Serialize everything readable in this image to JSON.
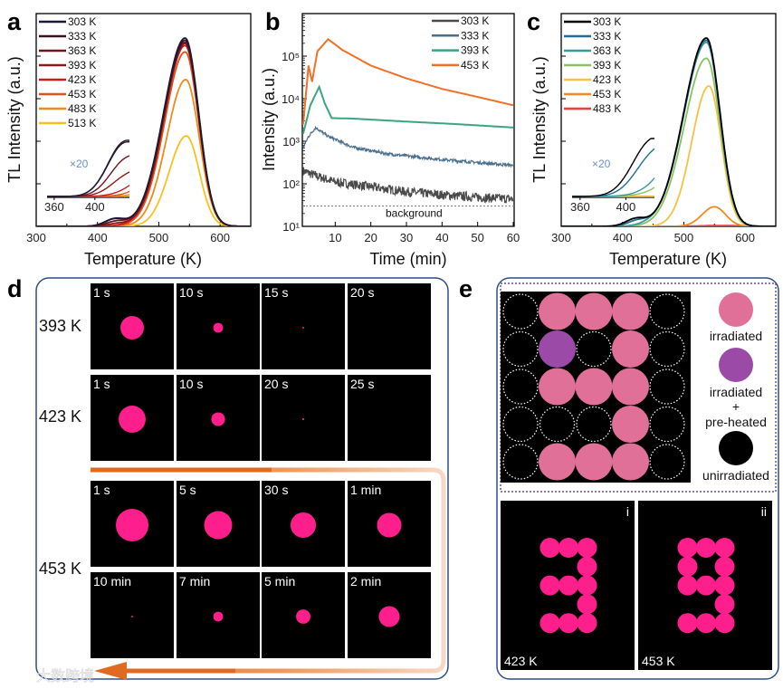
{
  "panel_letters": {
    "a": "a",
    "b": "b",
    "c": "c",
    "d": "d",
    "e": "e"
  },
  "watermark": "大数跨境",
  "chart_data": [
    {
      "id": "a",
      "type": "line",
      "xlabel": "Temperature (K)",
      "ylabel": "TL  Intensity (a.u.)",
      "xlim": [
        300,
        650
      ],
      "ylim": [
        0,
        1
      ],
      "xticks": [
        "300",
        "400",
        "500",
        "600"
      ],
      "grid": false,
      "legend_position": "top-left",
      "inset": {
        "label": "×20",
        "xlim": [
          353,
          434
        ],
        "xticks": [
          "360",
          "400"
        ],
        "magnification": 20
      },
      "series": [
        {
          "name": "303 K",
          "color": "#1b1a33",
          "peak_T": 543,
          "peak_I": 0.885,
          "width_low": 35,
          "width_high": 22,
          "low_peak_T": 428,
          "low_peak_I": 0.034
        },
        {
          "name": "333 K",
          "color": "#3a1020",
          "peak_T": 543,
          "peak_I": 0.875,
          "width_low": 35,
          "width_high": 22,
          "low_peak_T": 428,
          "low_peak_I": 0.033
        },
        {
          "name": "363 K",
          "color": "#6b1420",
          "peak_T": 543,
          "peak_I": 0.865,
          "width_low": 35,
          "width_high": 22,
          "low_peak_T": 430,
          "low_peak_I": 0.022
        },
        {
          "name": "393 K",
          "color": "#8c1a1a",
          "peak_T": 543,
          "peak_I": 0.86,
          "width_low": 34,
          "width_high": 22,
          "low_peak_T": 432,
          "low_peak_I": 0.012
        },
        {
          "name": "423 K",
          "color": "#c41e1e",
          "peak_T": 543,
          "peak_I": 0.85,
          "width_low": 34,
          "width_high": 22,
          "low_peak_T": 440,
          "low_peak_I": 0.003
        },
        {
          "name": "453 K",
          "color": "#e0521c",
          "peak_T": 543,
          "peak_I": 0.82,
          "width_low": 33,
          "width_high": 22,
          "low_peak_T": 440,
          "low_peak_I": 0.0
        },
        {
          "name": "483 K",
          "color": "#ee8a1e",
          "peak_T": 544,
          "peak_I": 0.69,
          "width_low": 31,
          "width_high": 22,
          "low_peak_T": 440,
          "low_peak_I": 0.0
        },
        {
          "name": "513 K",
          "color": "#f7c21e",
          "peak_T": 545,
          "peak_I": 0.425,
          "width_low": 28,
          "width_high": 21,
          "low_peak_T": 440,
          "low_peak_I": 0.0
        }
      ]
    },
    {
      "id": "b",
      "type": "line",
      "xlabel": "Time (min)",
      "ylabel": "Intensity (a.u.)",
      "xlim": [
        0,
        60
      ],
      "ylim": [
        10,
        1000000
      ],
      "yscale": "log",
      "xticks": [
        "10",
        "20",
        "30",
        "40",
        "50",
        "60"
      ],
      "yticks": [
        "10¹",
        "10²",
        "10³",
        "10⁴",
        "10⁵"
      ],
      "grid": false,
      "legend_position": "top-right",
      "annotation": {
        "text": "background",
        "value": 30
      },
      "series": [
        {
          "name": "303 K",
          "color": "#4a4a4a",
          "noisy": true,
          "points": [
            [
              1,
              200
            ],
            [
              5,
              150
            ],
            [
              10,
              110
            ],
            [
              20,
              85
            ],
            [
              30,
              65
            ],
            [
              40,
              55
            ],
            [
              50,
              48
            ],
            [
              60,
              44
            ]
          ]
        },
        {
          "name": "333 K",
          "color": "#4a6f8f",
          "noisy": true,
          "points": [
            [
              1,
              700
            ],
            [
              2.5,
              1300
            ],
            [
              4.5,
              2100
            ],
            [
              8,
              1300
            ],
            [
              15,
              720
            ],
            [
              25,
              500
            ],
            [
              40,
              370
            ],
            [
              60,
              270
            ]
          ]
        },
        {
          "name": "393 K",
          "color": "#3aa57e",
          "noisy": false,
          "points": [
            [
              1,
              1500
            ],
            [
              3,
              7000
            ],
            [
              5.5,
              19000
            ],
            [
              7,
              8000
            ],
            [
              9,
              3500
            ],
            [
              15,
              3400
            ],
            [
              30,
              2900
            ],
            [
              45,
              2500
            ],
            [
              60,
              2100
            ]
          ]
        },
        {
          "name": "453 K",
          "color": "#f07028",
          "noisy": false,
          "points": [
            [
              1,
              2500
            ],
            [
              2.5,
              60000
            ],
            [
              3.5,
              25000
            ],
            [
              5,
              130000
            ],
            [
              8,
              250000
            ],
            [
              12,
              140000
            ],
            [
              20,
              60000
            ],
            [
              30,
              30000
            ],
            [
              40,
              17000
            ],
            [
              50,
              11000
            ],
            [
              60,
              7000
            ]
          ]
        }
      ]
    },
    {
      "id": "c",
      "type": "line",
      "xlabel": "Temperature (K)",
      "ylabel": "TL  Intensity (a.u.)",
      "xlim": [
        300,
        650
      ],
      "ylim": [
        0,
        1
      ],
      "xticks": [
        "300",
        "400",
        "500",
        "600"
      ],
      "grid": false,
      "legend_position": "top-left",
      "inset": {
        "label": "×20",
        "xlim": [
          353,
          425
        ],
        "xticks": [
          "360",
          "400"
        ],
        "magnification": 20
      },
      "series": [
        {
          "name": "303 K",
          "color": "#000000",
          "peak_T": 537,
          "peak_I": 0.885,
          "width_low": 37,
          "width_high": 22,
          "low_peak_T": 421,
          "low_peak_I": 0.033
        },
        {
          "name": "333 K",
          "color": "#1f6e96",
          "peak_T": 537,
          "peak_I": 0.875,
          "width_low": 37,
          "width_high": 22,
          "low_peak_T": 424,
          "low_peak_I": 0.024
        },
        {
          "name": "363 K",
          "color": "#3a9a9a",
          "peak_T": 537,
          "peak_I": 0.865,
          "width_low": 37,
          "width_high": 22,
          "low_peak_T": 440,
          "low_peak_I": 0.006
        },
        {
          "name": "393 K",
          "color": "#8cc060",
          "peak_T": 537,
          "peak_I": 0.79,
          "width_low": 36,
          "width_high": 22,
          "low_peak_T": 440,
          "low_peak_I": 0.0
        },
        {
          "name": "423 K",
          "color": "#f5c242",
          "peak_T": 541,
          "peak_I": 0.66,
          "width_low": 28,
          "width_high": 20,
          "low_peak_T": 440,
          "low_peak_I": 0.0
        },
        {
          "name": "453 K",
          "color": "#f08a1e",
          "peak_T": 550,
          "peak_I": 0.092,
          "width_low": 20,
          "width_high": 18,
          "low_peak_T": 440,
          "low_peak_I": 0.0
        },
        {
          "name": "483 K",
          "color": "#f03c3c",
          "peak_T": 560,
          "peak_I": 0.004,
          "width_low": 30,
          "width_high": 30,
          "low_peak_T": 440,
          "low_peak_I": 0.0
        }
      ]
    }
  ],
  "panel_d": {
    "spot_color": "#ff1f8c",
    "groups": [
      {
        "label": "393 K",
        "rows": [
          [
            {
              "time": "1 s",
              "spot": 0.72
            },
            {
              "time": "10 s",
              "spot": 0.3
            },
            {
              "time": "15 s",
              "spot": 0.04
            },
            {
              "time": "20 s",
              "spot": 0
            }
          ]
        ]
      },
      {
        "label": "423 K",
        "rows": [
          [
            {
              "time": "1 s",
              "spot": 0.83
            },
            {
              "time": "10 s",
              "spot": 0.42
            },
            {
              "time": "20 s",
              "spot": 0.06
            },
            {
              "time": "25 s",
              "spot": 0
            }
          ]
        ]
      },
      {
        "label": "453 K",
        "rows": [
          [
            {
              "time": "1 s",
              "spot": 1
            },
            {
              "time": "5 s",
              "spot": 0.86
            },
            {
              "time": "30 s",
              "spot": 0.78
            },
            {
              "time": "1 min",
              "spot": 0.75
            }
          ],
          [
            {
              "time": "10 min",
              "spot": 0.05
            },
            {
              "time": "7 min",
              "spot": 0.3
            },
            {
              "time": "5 min",
              "spot": 0.44
            },
            {
              "time": "2 min",
              "spot": 0.64
            }
          ]
        ]
      }
    ]
  },
  "panel_e": {
    "colors": {
      "irradiated": "#e07098",
      "preheated": "#9b4aa8",
      "unirradiated": "#000000",
      "emission": "#ff1f8c"
    },
    "pattern": [
      [
        "none",
        "irr",
        "irr",
        "irr",
        "none"
      ],
      [
        "none",
        "pre",
        "none",
        "irr",
        "none"
      ],
      [
        "none",
        "irr",
        "irr",
        "irr",
        "none"
      ],
      [
        "none",
        "none",
        "none",
        "irr",
        "none"
      ],
      [
        "none",
        "irr",
        "irr",
        "irr",
        "none"
      ]
    ],
    "legend": {
      "irradiated": "irradiated",
      "preheated_1": "irradiated",
      "preheated_plus": "+",
      "preheated_2": "pre-heated",
      "unirradiated": "unirradiated"
    },
    "images": [
      {
        "index": "i",
        "temp": "423 K",
        "shows_preheated": false
      },
      {
        "index": "ii",
        "temp": "453 K",
        "shows_preheated": true
      }
    ]
  }
}
